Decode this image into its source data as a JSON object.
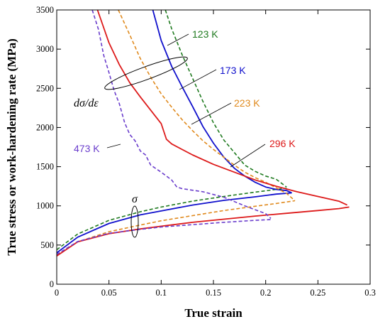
{
  "chart_data": {
    "type": "line",
    "title": "",
    "xlabel": "True strain",
    "ylabel": "True stress or work-hardening rate (MPa)",
    "xlim": [
      0,
      0.3
    ],
    "ylim": [
      0,
      3500
    ],
    "xticks": [
      "0",
      "0.05",
      "0.1",
      "0.15",
      "0.2",
      "0.25",
      "0.3"
    ],
    "yticks": [
      "0",
      "500",
      "1000",
      "1500",
      "2000",
      "2500",
      "3000",
      "3500"
    ],
    "grid": false,
    "legend": "none",
    "annotations": {
      "hardening_rate": "dσ/dε",
      "stress": "σ"
    },
    "series": [
      {
        "name": "123 K",
        "color": "#1f7a1f",
        "dash": "dashed",
        "kind": "stress",
        "x": [
          0,
          0.02,
          0.05,
          0.08,
          0.1,
          0.13,
          0.16,
          0.19,
          0.21,
          0.22
        ],
        "y": [
          440,
          640,
          815,
          925,
          985,
          1060,
          1120,
          1175,
          1210,
          1225
        ]
      },
      {
        "name": "123 K",
        "color": "#1f7a1f",
        "dash": "dashed",
        "kind": "hardening",
        "x": [
          0.104,
          0.11,
          0.12,
          0.13,
          0.14,
          0.15,
          0.16,
          0.17,
          0.18,
          0.19,
          0.2,
          0.21,
          0.22
        ],
        "y": [
          3500,
          3260,
          2930,
          2630,
          2330,
          2060,
          1840,
          1680,
          1520,
          1440,
          1380,
          1340,
          1240
        ]
      },
      {
        "name": "173 K",
        "color": "#1010cc",
        "dash": "solid",
        "kind": "stress",
        "x": [
          0,
          0.02,
          0.05,
          0.08,
          0.1,
          0.13,
          0.16,
          0.19,
          0.21,
          0.225
        ],
        "y": [
          400,
          600,
          775,
          885,
          935,
          1010,
          1070,
          1115,
          1150,
          1165
        ]
      },
      {
        "name": "173 K",
        "color": "#1010cc",
        "dash": "solid",
        "kind": "hardening",
        "x": [
          0.092,
          0.1,
          0.11,
          0.12,
          0.13,
          0.14,
          0.15,
          0.16,
          0.17,
          0.18,
          0.19,
          0.2,
          0.21,
          0.22,
          0.225
        ],
        "y": [
          3500,
          3110,
          2780,
          2520,
          2270,
          2010,
          1800,
          1620,
          1480,
          1380,
          1300,
          1240,
          1210,
          1195,
          1165
        ]
      },
      {
        "name": "223 K",
        "color": "#e08a1e",
        "dash": "dashed",
        "kind": "stress",
        "x": [
          0,
          0.02,
          0.05,
          0.08,
          0.1,
          0.13,
          0.16,
          0.19,
          0.21,
          0.228
        ],
        "y": [
          370,
          540,
          670,
          755,
          810,
          875,
          940,
          995,
          1030,
          1065
        ]
      },
      {
        "name": "223 K",
        "color": "#e08a1e",
        "dash": "dashed",
        "kind": "hardening",
        "x": [
          0.059,
          0.07,
          0.08,
          0.09,
          0.1,
          0.11,
          0.12,
          0.13,
          0.14,
          0.15,
          0.16,
          0.17,
          0.18,
          0.19,
          0.2,
          0.21,
          0.22,
          0.228
        ],
        "y": [
          3500,
          3180,
          2880,
          2640,
          2430,
          2260,
          2100,
          1960,
          1830,
          1720,
          1620,
          1520,
          1430,
          1360,
          1300,
          1230,
          1160,
          1065
        ]
      },
      {
        "name": "296 K",
        "color": "#dd1a1a",
        "dash": "solid",
        "kind": "stress",
        "x": [
          0,
          0.02,
          0.05,
          0.08,
          0.1,
          0.13,
          0.16,
          0.19,
          0.22,
          0.25,
          0.27,
          0.28
        ],
        "y": [
          360,
          540,
          645,
          705,
          740,
          790,
          830,
          870,
          905,
          940,
          965,
          985
        ]
      },
      {
        "name": "296 K",
        "color": "#dd1a1a",
        "dash": "solid",
        "kind": "hardening",
        "x": [
          0.039,
          0.05,
          0.06,
          0.07,
          0.08,
          0.09,
          0.1,
          0.105,
          0.11,
          0.13,
          0.15,
          0.17,
          0.19,
          0.21,
          0.23,
          0.25,
          0.27,
          0.278
        ],
        "y": [
          3500,
          3080,
          2800,
          2570,
          2390,
          2220,
          2050,
          1850,
          1790,
          1650,
          1530,
          1430,
          1330,
          1250,
          1180,
          1120,
          1060,
          1010
        ]
      },
      {
        "name": "473 K",
        "color": "#6a3dcc",
        "dash": "dashed",
        "kind": "stress",
        "x": [
          0,
          0.02,
          0.05,
          0.08,
          0.1,
          0.13,
          0.16,
          0.19,
          0.205
        ],
        "y": [
          380,
          545,
          650,
          700,
          730,
          760,
          790,
          815,
          825
        ]
      },
      {
        "name": "473 K",
        "color": "#6a3dcc",
        "dash": "dashed",
        "kind": "hardening",
        "x": [
          0.034,
          0.04,
          0.045,
          0.05,
          0.055,
          0.06,
          0.065,
          0.07,
          0.075,
          0.08,
          0.085,
          0.09,
          0.1,
          0.11,
          0.115,
          0.12,
          0.14,
          0.16,
          0.18,
          0.2,
          0.205
        ],
        "y": [
          3500,
          3250,
          2920,
          2700,
          2470,
          2300,
          2060,
          1910,
          1830,
          1700,
          1650,
          1520,
          1430,
          1330,
          1240,
          1220,
          1180,
          1110,
          1000,
          900,
          840
        ]
      }
    ],
    "labels": [
      {
        "text": "123 K",
        "color": "#1f7a1f"
      },
      {
        "text": "173 K",
        "color": "#1010cc"
      },
      {
        "text": "223 K",
        "color": "#e08a1e"
      },
      {
        "text": "296 K",
        "color": "#dd1a1a"
      },
      {
        "text": "473 K",
        "color": "#6a3dcc"
      }
    ]
  }
}
